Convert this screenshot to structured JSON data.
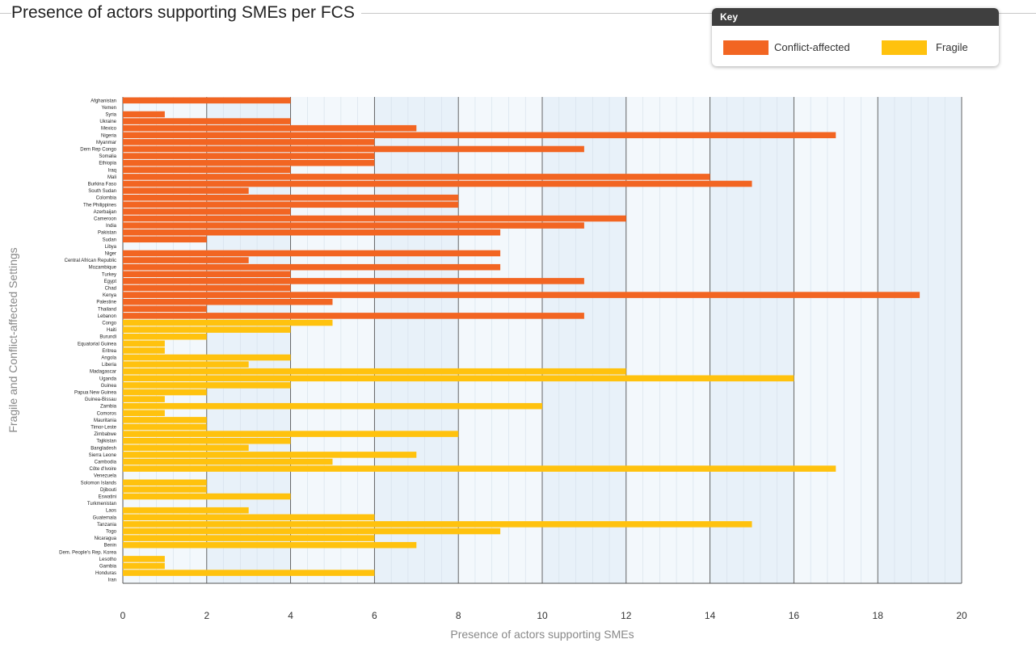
{
  "chart_data": {
    "type": "bar",
    "orientation": "horizontal",
    "title": "Presence of actors supporting SMEs per FCS",
    "xlabel": "Presence of actors supporting SMEs",
    "ylabel": "Fragile and Conflict-affected Settings",
    "xlim": [
      0,
      20
    ],
    "xticks": [
      0,
      2,
      4,
      6,
      8,
      10,
      12,
      14,
      16,
      18,
      20
    ],
    "grid": true,
    "legend": {
      "title": "Key",
      "placement": "top-right",
      "entries": [
        {
          "name": "Conflict-affected",
          "color": "#f26522"
        },
        {
          "name": "Fragile",
          "color": "#ffc20e"
        }
      ]
    },
    "series": [
      {
        "name": "Conflict-affected",
        "color": "#f26522"
      },
      {
        "name": "Fragile",
        "color": "#ffc20e"
      }
    ],
    "categories": [
      "Afghanistan",
      "Yemen",
      "Syria",
      "Ukraine",
      "Mexico",
      "Nigeria",
      "Myanmar",
      "Dem Rep Congo",
      "Somalia",
      "Ethiopia",
      "Iraq",
      "Mali",
      "Burkina Faso",
      "South Sudan",
      "Colombia",
      "The Philippines",
      "Azerbaijan",
      "Cameroon",
      "India",
      "Pakistan",
      "Sudan",
      "Libya",
      "Niger",
      "Central African Republic",
      "Mozambique",
      "Turkey",
      "Egypt",
      "Chad",
      "Kenya",
      "Palestine",
      "Thailand",
      "Lebanon",
      "Congo",
      "Haiti",
      "Burundi",
      "Equatorial Guinea",
      "Eritrea",
      "Angola",
      "Liberia",
      "Madagascar",
      "Uganda",
      "Guinea",
      "Papua New Guinea",
      "Guinea-Bissau",
      "Zambia",
      "Comoros",
      "Mauritania",
      "Timor-Leste",
      "Zimbabwe",
      "Tajikistan",
      "Bangladesh",
      "Sierra Leone",
      "Cambodia",
      "Côte d'Ivoire",
      "Venezuela",
      "Solomon Islands",
      "Djibouti",
      "Eswatini",
      "Turkmenistan",
      "Laos",
      "Guatemala",
      "Tanzania",
      "Togo",
      "Nicaragua",
      "Benin",
      "Dem. People's Rep. Korea",
      "Lesotho",
      "Gambia",
      "Honduras",
      "Iran"
    ],
    "values": [
      4,
      0,
      1,
      4,
      7,
      17,
      6,
      11,
      6,
      6,
      4,
      14,
      15,
      3,
      8,
      8,
      4,
      12,
      11,
      9,
      2,
      0,
      9,
      3,
      9,
      4,
      11,
      4,
      19,
      5,
      2,
      11,
      5,
      4,
      2,
      1,
      1,
      4,
      3,
      12,
      16,
      4,
      2,
      1,
      10,
      1,
      2,
      2,
      8,
      4,
      3,
      7,
      5,
      17,
      0,
      2,
      2,
      4,
      0,
      3,
      6,
      15,
      9,
      6,
      7,
      0,
      1,
      1,
      6,
      0
    ],
    "groups": [
      "Conflict-affected",
      "Conflict-affected",
      "Conflict-affected",
      "Conflict-affected",
      "Conflict-affected",
      "Conflict-affected",
      "Conflict-affected",
      "Conflict-affected",
      "Conflict-affected",
      "Conflict-affected",
      "Conflict-affected",
      "Conflict-affected",
      "Conflict-affected",
      "Conflict-affected",
      "Conflict-affected",
      "Conflict-affected",
      "Conflict-affected",
      "Conflict-affected",
      "Conflict-affected",
      "Conflict-affected",
      "Conflict-affected",
      "Conflict-affected",
      "Conflict-affected",
      "Conflict-affected",
      "Conflict-affected",
      "Conflict-affected",
      "Conflict-affected",
      "Conflict-affected",
      "Conflict-affected",
      "Conflict-affected",
      "Conflict-affected",
      "Conflict-affected",
      "Fragile",
      "Fragile",
      "Fragile",
      "Fragile",
      "Fragile",
      "Fragile",
      "Fragile",
      "Fragile",
      "Fragile",
      "Fragile",
      "Fragile",
      "Fragile",
      "Fragile",
      "Fragile",
      "Fragile",
      "Fragile",
      "Fragile",
      "Fragile",
      "Fragile",
      "Fragile",
      "Fragile",
      "Fragile",
      "Fragile",
      "Fragile",
      "Fragile",
      "Fragile",
      "Fragile",
      "Fragile",
      "Fragile",
      "Fragile",
      "Fragile",
      "Fragile",
      "Fragile",
      "Fragile",
      "Fragile",
      "Fragile",
      "Fragile",
      "Fragile"
    ]
  }
}
